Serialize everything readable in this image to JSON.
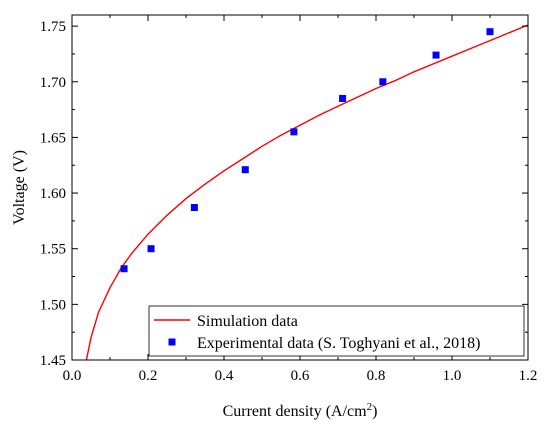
{
  "chart_data": {
    "type": "scatter",
    "xlabel": "Current density (A/cm",
    "xlabel_sup": "2",
    "xlabel_end": ")",
    "ylabel": "Voltage (V)",
    "xlim": [
      0.0,
      1.2
    ],
    "ylim": [
      1.45,
      1.76
    ],
    "xticks": [
      0.0,
      0.2,
      0.4,
      0.6,
      0.8,
      1.0,
      1.2
    ],
    "xtick_labels": [
      "0.0",
      "0.2",
      "0.4",
      "0.6",
      "0.8",
      "1.0",
      "1.2"
    ],
    "yticks": [
      1.45,
      1.5,
      1.55,
      1.6,
      1.65,
      1.7,
      1.75
    ],
    "ytick_labels": [
      "1.45",
      "1.50",
      "1.55",
      "1.60",
      "1.65",
      "1.70",
      "1.75"
    ],
    "grid": false,
    "legend_position": "bottom-right",
    "colors": {
      "simulation": "#ff0000",
      "experimental": "#0000ff"
    },
    "series": [
      {
        "name": "Simulation data",
        "kind": "line",
        "x": [
          0.038,
          0.05,
          0.07,
          0.1,
          0.13,
          0.16,
          0.2,
          0.25,
          0.3,
          0.35,
          0.4,
          0.45,
          0.5,
          0.55,
          0.6,
          0.65,
          0.7,
          0.75,
          0.8,
          0.85,
          0.9,
          0.95,
          1.0,
          1.05,
          1.1,
          1.15,
          1.2
        ],
        "y": [
          1.45,
          1.47,
          1.493,
          1.515,
          1.533,
          1.547,
          1.563,
          1.58,
          1.595,
          1.608,
          1.62,
          1.631,
          1.642,
          1.652,
          1.661,
          1.67,
          1.678,
          1.686,
          1.694,
          1.701,
          1.709,
          1.716,
          1.723,
          1.73,
          1.737,
          1.744,
          1.751
        ]
      },
      {
        "name": "Experimental data (S. Toghyani et al., 2018)",
        "kind": "scatter",
        "x": [
          0.137,
          0.208,
          0.322,
          0.456,
          0.584,
          0.712,
          0.818,
          0.958,
          1.1
        ],
        "y": [
          1.532,
          1.55,
          1.587,
          1.621,
          1.655,
          1.685,
          1.7,
          1.724,
          1.745
        ]
      }
    ]
  }
}
